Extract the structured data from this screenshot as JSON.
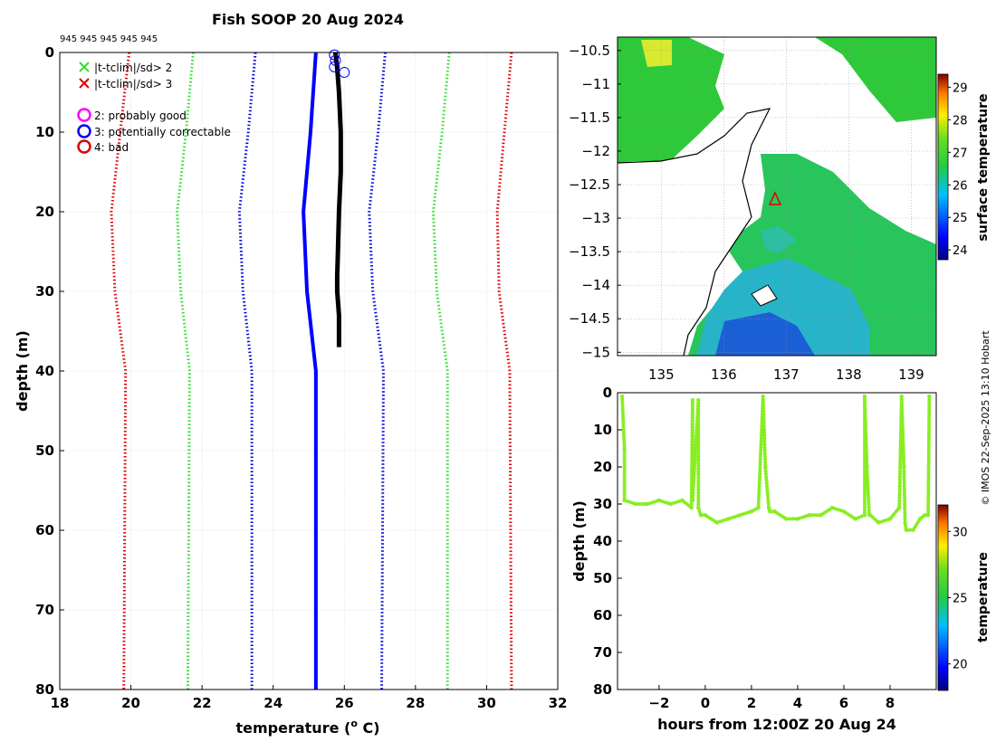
{
  "title": "Fish SOOP 20 Aug 2024",
  "station_ids": "945 945 945 945 945",
  "credit": "© IMOS 22-Sep-2025 13:10 Hobart",
  "colors": {
    "black": "#000000",
    "blue": "#0000ff",
    "red": "#e00000",
    "green": "#33dd33",
    "magenta": "#ff00ff",
    "grid": "#cccccc",
    "coast": "#000000",
    "tow": "#88ee22"
  },
  "legend": {
    "x_green": "|t-tclim|/sd> 2",
    "x_red": "|t-tclim|/sd> 3",
    "flag2": "2: probably good",
    "flag3": "3: potentially correctable",
    "flag4": "4: bad"
  },
  "chart_data": [
    {
      "type": "line",
      "name": "profile",
      "title": "Fish SOOP 20 Aug 2024",
      "xlabel": "temperature (° C)",
      "xlabel_base": "temperature (",
      "xlabel_sup": "o",
      "xlabel_end": " C)",
      "ylabel": "depth (m)",
      "xlim": [
        18,
        32
      ],
      "ylim": [
        0,
        80
      ],
      "y_reversed": true,
      "xticks": [
        18,
        20,
        22,
        24,
        26,
        28,
        30,
        32
      ],
      "yticks": [
        0,
        10,
        20,
        30,
        40,
        50,
        60,
        70,
        80
      ],
      "grid": true,
      "depth_levels": [
        0,
        10,
        20,
        30,
        40,
        80
      ],
      "series": [
        {
          "name": "climatology mean",
          "color": "#0000ff",
          "style": "solid",
          "values": [
            25.2,
            25.05,
            24.85,
            24.95,
            25.2,
            25.2
          ]
        },
        {
          "name": "-3 sd",
          "color": "#e00000",
          "style": "dotted",
          "values": [
            19.95,
            19.7,
            19.45,
            19.55,
            19.85,
            19.8
          ]
        },
        {
          "name": "+3 sd",
          "color": "#e00000",
          "style": "dotted",
          "values": [
            30.7,
            30.5,
            30.3,
            30.35,
            30.65,
            30.7
          ]
        },
        {
          "name": "-2 sd",
          "color": "#33dd33",
          "style": "dotted",
          "values": [
            21.75,
            21.55,
            21.3,
            21.4,
            21.65,
            21.6
          ]
        },
        {
          "name": "+2 sd",
          "color": "#33dd33",
          "style": "dotted",
          "values": [
            28.95,
            28.75,
            28.5,
            28.6,
            28.9,
            28.9
          ]
        },
        {
          "name": "-1 sd",
          "color": "#0000dd",
          "style": "dotted",
          "values": [
            23.5,
            23.3,
            23.05,
            23.15,
            23.4,
            23.4
          ]
        },
        {
          "name": "+1 sd",
          "color": "#0000dd",
          "style": "dotted",
          "values": [
            27.15,
            26.95,
            26.7,
            26.8,
            27.1,
            27.05
          ]
        }
      ],
      "observed_profile": {
        "name": "observed temperature",
        "color": "#000000",
        "depth": [
          0,
          2,
          5,
          10,
          15,
          20,
          25,
          28,
          30,
          33,
          37
        ],
        "temperature": [
          25.75,
          25.8,
          25.85,
          25.9,
          25.9,
          25.85,
          25.82,
          25.8,
          25.8,
          25.85,
          25.85
        ]
      },
      "flag3_circles": {
        "temperature": [
          25.72,
          25.75,
          25.72,
          26.0
        ],
        "depth": [
          0.3,
          1.0,
          1.8,
          2.5
        ]
      }
    },
    {
      "type": "heatmap",
      "name": "sst_map",
      "xlim": [
        134.3,
        139.4
      ],
      "ylim": [
        -15.05,
        -10.3
      ],
      "xticks": [
        135,
        136,
        137,
        138,
        139
      ],
      "yticks": [
        -10.5,
        -11,
        -11.5,
        -12,
        -12.5,
        -13,
        -13.5,
        -14,
        -14.5,
        -15
      ],
      "colorbar_label": "surface temperature",
      "colorbar_range": [
        23.7,
        29.4
      ],
      "colorbar_ticks": [
        24,
        25,
        26,
        27,
        28,
        29
      ],
      "marker_position": {
        "lon": 136.85,
        "lat": -12.65
      }
    },
    {
      "type": "scatter",
      "name": "tow_depth_time",
      "xlabel": "hours from 12:00Z 20 Aug 24",
      "ylabel": "depth (m)",
      "xlim": [
        -3.8,
        10.0
      ],
      "ylim": [
        0,
        80
      ],
      "y_reversed": true,
      "xticks": [
        -2,
        0,
        2,
        4,
        6,
        8
      ],
      "yticks": [
        0,
        10,
        20,
        30,
        40,
        50,
        60,
        70,
        80
      ],
      "colorbar_label": "temperature",
      "colorbar_range": [
        18,
        32
      ],
      "colorbar_ticks": [
        20,
        25,
        30
      ],
      "points": {
        "hours": [
          -3.6,
          -3.5,
          -3.5,
          -3.0,
          -2.5,
          -2.0,
          -1.5,
          -1.0,
          -0.6,
          -0.55,
          -0.55,
          -0.3,
          -0.3,
          -0.2,
          0.0,
          0.5,
          1.0,
          1.5,
          2.0,
          2.3,
          2.5,
          2.55,
          2.6,
          2.75,
          2.8,
          3.0,
          3.5,
          4.0,
          4.5,
          5.0,
          5.5,
          6.0,
          6.5,
          6.9,
          6.9,
          7.0,
          7.1,
          7.15,
          7.5,
          8.0,
          8.4,
          8.5,
          8.55,
          8.6,
          8.65,
          8.7,
          9.0,
          9.3,
          9.5,
          9.65,
          9.7
        ],
        "depth": [
          1,
          15,
          29,
          30,
          30,
          29,
          30,
          29,
          31,
          2,
          29,
          2,
          31,
          33,
          33,
          35,
          34,
          33,
          32,
          31,
          1,
          10,
          20,
          31,
          32,
          32,
          34,
          34,
          33,
          33,
          31,
          32,
          34,
          33,
          1,
          20,
          33,
          33,
          35,
          34,
          31,
          1,
          10,
          20,
          35,
          37,
          37,
          34,
          33,
          33,
          1
        ]
      }
    }
  ]
}
